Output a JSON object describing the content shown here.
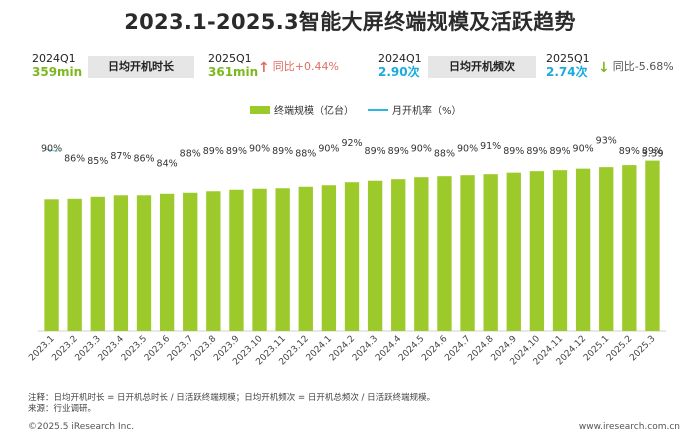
{
  "title": "2023.1-2025.3智能大屏终端规模及活跃趋势",
  "kpis": {
    "duration": {
      "prev_period": "2024Q1",
      "prev_value": "359min",
      "label": "日均开机时长",
      "curr_period": "2025Q1",
      "curr_value": "361min",
      "change": "同比+0.44%",
      "direction": "up"
    },
    "frequency": {
      "prev_period": "2024Q1",
      "prev_value": "2.90次",
      "label": "日均开机频次",
      "curr_period": "2025Q1",
      "curr_value": "2.74次",
      "change": "同比-5.68%",
      "direction": "down"
    }
  },
  "colors": {
    "bar": "#9cca2a",
    "line": "#2bb5e6",
    "up_arrow": "#e06c60",
    "down_arrow": "#7cb81d",
    "green_value": "#7cb81d",
    "blue_value": "#1aaae0"
  },
  "legend": {
    "bar_label": "终端规模（亿台）",
    "line_label": "月开机率（%）"
  },
  "chart_data": {
    "type": "bar",
    "categories": [
      "2023.1",
      "2023.2",
      "2023.3",
      "2023.4",
      "2023.5",
      "2023.6",
      "2023.7",
      "2023.8",
      "2023.9",
      "2023.10",
      "2023.11",
      "2023.12",
      "2024.1",
      "2024.2",
      "2024.3",
      "2024.4",
      "2024.5",
      "2024.6",
      "2024.7",
      "2024.8",
      "2024.9",
      "2024.10",
      "2024.11",
      "2024.12",
      "2025.1",
      "2025.2",
      "2025.3"
    ],
    "series": [
      {
        "name": "终端规模（亿台）",
        "type": "bar",
        "values": [
          2.62,
          2.63,
          2.67,
          2.7,
          2.7,
          2.73,
          2.75,
          2.78,
          2.81,
          2.83,
          2.84,
          2.87,
          2.9,
          2.96,
          2.99,
          3.02,
          3.06,
          3.08,
          3.1,
          3.12,
          3.15,
          3.18,
          3.2,
          3.23,
          3.26,
          3.3,
          3.39
        ],
        "labeled": {
          "26": "3.39"
        }
      },
      {
        "name": "月开机率（%）",
        "type": "line",
        "labels": [
          "90%",
          "86%",
          "85%",
          "87%",
          "86%",
          "84%",
          "88%",
          "89%",
          "89%",
          "90%",
          "89%",
          "88%",
          "90%",
          "92%",
          "89%",
          "89%",
          "90%",
          "88%",
          "90%",
          "91%",
          "89%",
          "89%",
          "89%",
          "90%",
          "93%",
          "89%",
          "89%"
        ],
        "values": [
          90,
          86,
          85,
          87,
          86,
          84,
          88,
          89,
          89,
          90,
          89,
          88,
          90,
          92,
          89,
          89,
          90,
          88,
          90,
          91,
          89,
          89,
          89,
          90,
          93,
          89,
          89
        ]
      }
    ],
    "ylim": [
      0,
      3.8
    ],
    "grid": false,
    "legend_position": "top-center"
  },
  "footer": {
    "note": "注释：日均开机时长 = 日开机总时长 / 日活跃终端规模；日均开机频次 = 日开机总频次 / 日活跃终端规模。",
    "source": "来源：行业调研。",
    "copyright": "©2025.5 iResearch Inc.",
    "site": "www.iresearch.com.cn"
  }
}
